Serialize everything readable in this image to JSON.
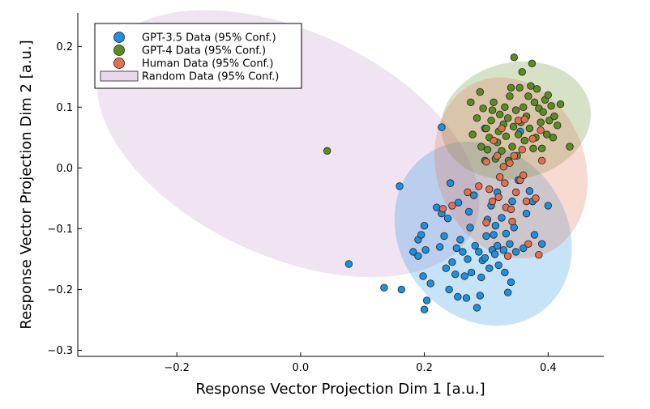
{
  "chart_data": {
    "type": "scatter",
    "xlabel": "Response Vector Projection Dim 1 [a.u.]",
    "ylabel": "Response Vector Projection Dim 2 [a.u.]",
    "xlim": [
      -0.36,
      0.49
    ],
    "ylim": [
      -0.31,
      0.255
    ],
    "xticks": [
      -0.2,
      0.0,
      0.2,
      0.4
    ],
    "xtick_labels": [
      "−0.2",
      "0.0",
      "0.2",
      "0.4"
    ],
    "yticks": [
      -0.3,
      -0.2,
      -0.1,
      0.0,
      0.1,
      0.2
    ],
    "ytick_labels": [
      "−0.3",
      "−0.2",
      "−0.1",
      "0.0",
      "0.1",
      "0.2"
    ],
    "grid": false,
    "legend_position": "top-left",
    "series": [
      {
        "name": "GPT-3.5 Data (95% Conf.)",
        "color": "#1f8fe0",
        "ellipse": {
          "cx": 0.295,
          "cy": -0.108,
          "rx": 0.134,
          "ry": 0.16,
          "angle_deg": 38
        },
        "points": [
          [
            0.078,
            -0.158
          ],
          [
            0.135,
            -0.197
          ],
          [
            0.16,
            -0.03
          ],
          [
            0.163,
            -0.2
          ],
          [
            0.182,
            -0.138
          ],
          [
            0.19,
            -0.145
          ],
          [
            0.19,
            -0.118
          ],
          [
            0.195,
            -0.11
          ],
          [
            0.198,
            -0.178
          ],
          [
            0.2,
            -0.095
          ],
          [
            0.2,
            -0.233
          ],
          [
            0.202,
            -0.135
          ],
          [
            0.204,
            -0.218
          ],
          [
            0.21,
            -0.19
          ],
          [
            0.22,
            -0.065
          ],
          [
            0.225,
            -0.13
          ],
          [
            0.228,
            -0.075
          ],
          [
            0.232,
            -0.112
          ],
          [
            0.235,
            -0.165
          ],
          [
            0.238,
            -0.083
          ],
          [
            0.24,
            -0.2
          ],
          [
            0.242,
            -0.025
          ],
          [
            0.245,
            -0.155
          ],
          [
            0.25,
            -0.175
          ],
          [
            0.252,
            -0.132
          ],
          [
            0.254,
            -0.212
          ],
          [
            0.255,
            -0.057
          ],
          [
            0.258,
            -0.118
          ],
          [
            0.262,
            -0.138
          ],
          [
            0.265,
            -0.178
          ],
          [
            0.268,
            -0.214
          ],
          [
            0.27,
            -0.15
          ],
          [
            0.274,
            -0.098
          ],
          [
            0.276,
            -0.172
          ],
          [
            0.28,
            -0.045
          ],
          [
            0.282,
            -0.128
          ],
          [
            0.285,
            -0.23
          ],
          [
            0.288,
            -0.138
          ],
          [
            0.29,
            -0.21
          ],
          [
            0.292,
            -0.18
          ],
          [
            0.294,
            -0.152
          ],
          [
            0.298,
            -0.148
          ],
          [
            0.3,
            -0.112
          ],
          [
            0.302,
            -0.085
          ],
          [
            0.305,
            -0.165
          ],
          [
            0.308,
            -0.062
          ],
          [
            0.31,
            -0.135
          ],
          [
            0.312,
            -0.11
          ],
          [
            0.314,
            -0.142
          ],
          [
            0.315,
            -0.095
          ],
          [
            0.318,
            -0.128
          ],
          [
            0.32,
            -0.16
          ],
          [
            0.325,
            -0.082
          ],
          [
            0.328,
            -0.135
          ],
          [
            0.33,
            -0.172
          ],
          [
            0.332,
            -0.108
          ],
          [
            0.335,
            -0.205
          ],
          [
            0.338,
            -0.125
          ],
          [
            0.34,
            -0.188
          ],
          [
            0.342,
            -0.055
          ],
          [
            0.345,
            -0.098
          ],
          [
            0.348,
            -0.138
          ],
          [
            0.352,
            -0.02
          ],
          [
            0.355,
            0.06
          ],
          [
            0.36,
            -0.132
          ],
          [
            0.365,
            -0.075
          ],
          [
            0.37,
            -0.038
          ],
          [
            0.375,
            -0.055
          ],
          [
            0.378,
            -0.11
          ],
          [
            0.39,
            -0.125
          ],
          [
            0.4,
            -0.062
          ],
          [
            0.228,
            0.067
          ],
          [
            0.298,
            0.065
          ],
          [
            0.272,
            -0.072
          ],
          [
            0.318,
            -0.04
          ]
        ]
      },
      {
        "name": "GPT-4 Data (95% Conf.)",
        "color": "#5b8c22",
        "ellipse": {
          "cx": 0.348,
          "cy": 0.078,
          "rx": 0.122,
          "ry": 0.096,
          "angle_deg": 12
        },
        "points": [
          [
            0.043,
            0.028
          ],
          [
            0.275,
            0.108
          ],
          [
            0.278,
            0.055
          ],
          [
            0.285,
            0.082
          ],
          [
            0.29,
            0.125
          ],
          [
            0.292,
            0.035
          ],
          [
            0.295,
            0.098
          ],
          [
            0.298,
            0.012
          ],
          [
            0.3,
            0.065
          ],
          [
            0.302,
            0.03
          ],
          [
            0.305,
            0.05
          ],
          [
            0.308,
            0.078
          ],
          [
            0.31,
            0.095
          ],
          [
            0.312,
            0.108
          ],
          [
            0.315,
            0.015
          ],
          [
            0.318,
            0.042
          ],
          [
            0.32,
            0.06
          ],
          [
            0.322,
            0.088
          ],
          [
            0.325,
            0.028
          ],
          [
            0.328,
            0.072
          ],
          [
            0.33,
            0.1
          ],
          [
            0.332,
            0.052
          ],
          [
            0.335,
            0.082
          ],
          [
            0.336,
            0.012
          ],
          [
            0.338,
            0.118
          ],
          [
            0.34,
            0.132
          ],
          [
            0.342,
            0.035
          ],
          [
            0.344,
            0.068
          ],
          [
            0.345,
            0.182
          ],
          [
            0.348,
            0.095
          ],
          [
            0.35,
            0.02
          ],
          [
            0.352,
            0.055
          ],
          [
            0.354,
            0.132
          ],
          [
            0.356,
            0.075
          ],
          [
            0.358,
            0.158
          ],
          [
            0.36,
            0.1
          ],
          [
            0.362,
            0.045
          ],
          [
            0.365,
            0.085
          ],
          [
            0.368,
            0.118
          ],
          [
            0.37,
            0.065
          ],
          [
            0.372,
            0.135
          ],
          [
            0.374,
            0.172
          ],
          [
            0.376,
            0.032
          ],
          [
            0.378,
            0.108
          ],
          [
            0.38,
            0.05
          ],
          [
            0.382,
            0.13
          ],
          [
            0.385,
            0.098
          ],
          [
            0.388,
            0.075
          ],
          [
            0.39,
            0.032
          ],
          [
            0.392,
            0.092
          ],
          [
            0.395,
            0.112
          ],
          [
            0.398,
            0.055
          ],
          [
            0.4,
            0.12
          ],
          [
            0.402,
            0.078
          ],
          [
            0.405,
            0.102
          ],
          [
            0.408,
            0.05
          ],
          [
            0.41,
            0.085
          ],
          [
            0.415,
            0.07
          ],
          [
            0.42,
            0.105
          ],
          [
            0.435,
            0.035
          ]
        ]
      },
      {
        "name": "Human Data (95% Conf.)",
        "color": "#e0714f",
        "ellipse": {
          "cx": 0.34,
          "cy": 0.0,
          "rx": 0.12,
          "ry": 0.152,
          "angle_deg": 20
        },
        "points": [
          [
            0.23,
            -0.067
          ],
          [
            0.245,
            -0.062
          ],
          [
            0.27,
            -0.04
          ],
          [
            0.288,
            -0.03
          ],
          [
            0.3,
            0.01
          ],
          [
            0.305,
            -0.035
          ],
          [
            0.31,
            -0.055
          ],
          [
            0.312,
            0.045
          ],
          [
            0.318,
            0.02
          ],
          [
            0.32,
            -0.048
          ],
          [
            0.322,
            -0.015
          ],
          [
            0.325,
            0.065
          ],
          [
            0.328,
            0.002
          ],
          [
            0.33,
            -0.025
          ],
          [
            0.332,
            -0.065
          ],
          [
            0.335,
            -0.145
          ],
          [
            0.338,
            0.008
          ],
          [
            0.34,
            -0.068
          ],
          [
            0.342,
            -0.088
          ],
          [
            0.345,
            0.02
          ],
          [
            0.348,
            -0.04
          ],
          [
            0.352,
            0.078
          ],
          [
            0.355,
            -0.02
          ],
          [
            0.358,
            0.03
          ],
          [
            0.36,
            -0.012
          ],
          [
            0.362,
            0.08
          ],
          [
            0.365,
            -0.055
          ],
          [
            0.368,
            -0.125
          ],
          [
            0.375,
            0.048
          ],
          [
            0.38,
            -0.05
          ],
          [
            0.385,
            -0.143
          ],
          [
            0.388,
            0.062
          ],
          [
            0.39,
            0.012
          ],
          [
            0.3,
            -0.09
          ]
        ]
      },
      {
        "name": "Random Data (95% Conf.)",
        "color": "#d7b6dc",
        "ellipse": {
          "cx": -0.02,
          "cy": 0.04,
          "rx": 0.33,
          "ry": 0.185,
          "angle_deg": -25
        },
        "points": []
      }
    ]
  }
}
